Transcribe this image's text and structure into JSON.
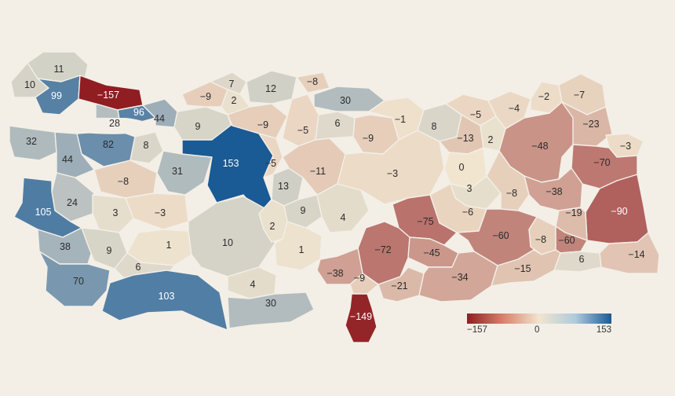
{
  "colors": {
    "background": "#f3efe7",
    "scale_min": "#8f1d22",
    "scale_mid": "#f1e5cf",
    "scale_max": "#1a5a95"
  },
  "legend": {
    "min_label": "−157",
    "zero_label": "0",
    "max_label": "153"
  },
  "scale": {
    "min": -157,
    "mid": 0,
    "max": 153
  },
  "provinces": [
    {
      "id": "p01",
      "value": 11
    },
    {
      "id": "p02",
      "value": 10
    },
    {
      "id": "p03",
      "value": 99
    },
    {
      "id": "p04",
      "value": -157
    },
    {
      "id": "p05",
      "value": 96
    },
    {
      "id": "p06",
      "value": 28
    },
    {
      "id": "p07",
      "value": 44
    },
    {
      "id": "p08",
      "value": 32
    },
    {
      "id": "p09",
      "value": 82
    },
    {
      "id": "p10",
      "value": 8
    },
    {
      "id": "p11",
      "value": 44
    },
    {
      "id": "p12",
      "value": 9
    },
    {
      "id": "p13",
      "value": 31
    },
    {
      "id": "p14",
      "value": 153
    },
    {
      "id": "p15",
      "value": -8
    },
    {
      "id": "p16",
      "value": 24
    },
    {
      "id": "p17",
      "value": 105
    },
    {
      "id": "p18",
      "value": 3
    },
    {
      "id": "p19",
      "value": -3
    },
    {
      "id": "p20",
      "value": 38
    },
    {
      "id": "p21",
      "value": 9
    },
    {
      "id": "p22",
      "value": 1
    },
    {
      "id": "p23",
      "value": 10
    },
    {
      "id": "p24",
      "value": 6
    },
    {
      "id": "p25",
      "value": 70
    },
    {
      "id": "p26",
      "value": 103
    },
    {
      "id": "p27",
      "value": 4
    },
    {
      "id": "p28",
      "value": 30
    },
    {
      "id": "p29",
      "value": -9
    },
    {
      "id": "p30",
      "value": 7
    },
    {
      "id": "p31",
      "value": 2
    },
    {
      "id": "p32",
      "value": 12
    },
    {
      "id": "p33",
      "value": -8
    },
    {
      "id": "p34",
      "value": 30
    },
    {
      "id": "p35",
      "value": -9
    },
    {
      "id": "p36",
      "value": -5
    },
    {
      "id": "p37",
      "value": -5
    },
    {
      "id": "p38",
      "value": 6
    },
    {
      "id": "p39",
      "value": 13
    },
    {
      "id": "p40",
      "value": -11
    },
    {
      "id": "p41",
      "value": 9
    },
    {
      "id": "p42",
      "value": 2
    },
    {
      "id": "p43",
      "value": 1
    },
    {
      "id": "p44",
      "value": 4
    },
    {
      "id": "p45",
      "value": -9
    },
    {
      "id": "p46",
      "value": -1
    },
    {
      "id": "p47",
      "value": -3
    },
    {
      "id": "p48",
      "value": 8
    },
    {
      "id": "p49",
      "value": -5
    },
    {
      "id": "p50",
      "value": -13
    },
    {
      "id": "p51",
      "value": 2
    },
    {
      "id": "p52",
      "value": 0
    },
    {
      "id": "p53",
      "value": 3
    },
    {
      "id": "p54",
      "value": -6
    },
    {
      "id": "p55",
      "value": -4
    },
    {
      "id": "p56",
      "value": -2
    },
    {
      "id": "p57",
      "value": -7
    },
    {
      "id": "p58",
      "value": -23
    },
    {
      "id": "p59",
      "value": -48
    },
    {
      "id": "p60",
      "value": -3
    },
    {
      "id": "p61",
      "value": -70
    },
    {
      "id": "p62",
      "value": -38
    },
    {
      "id": "p63",
      "value": -8
    },
    {
      "id": "p64",
      "value": -90
    },
    {
      "id": "p65",
      "value": -19
    },
    {
      "id": "p66",
      "value": -75
    },
    {
      "id": "p67",
      "value": -60
    },
    {
      "id": "p68",
      "value": -8
    },
    {
      "id": "p69",
      "value": -60
    },
    {
      "id": "p70",
      "value": -72
    },
    {
      "id": "p71",
      "value": -45
    },
    {
      "id": "p72",
      "value": -38
    },
    {
      "id": "p73",
      "value": -9
    },
    {
      "id": "p74",
      "value": -21
    },
    {
      "id": "p75",
      "value": -34
    },
    {
      "id": "p76",
      "value": -15
    },
    {
      "id": "p77",
      "value": 6
    },
    {
      "id": "p78",
      "value": -14
    },
    {
      "id": "p79",
      "value": -149
    }
  ]
}
